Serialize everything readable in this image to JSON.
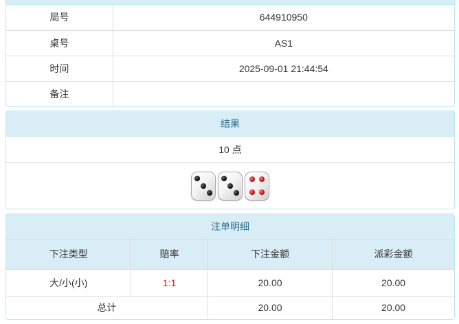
{
  "colors": {
    "panel_border": "#bce8f1",
    "heading_bg": "#d9edf7",
    "heading_text": "#31708f",
    "cell_border": "#dddddd",
    "text": "#333333",
    "odds_red": "#ff0000",
    "page_bg": "#ffffff"
  },
  "info_panel": {
    "rows": [
      {
        "label": "局号",
        "value": "644910950"
      },
      {
        "label": "桌号",
        "value": "AS1"
      },
      {
        "label": "时间",
        "value": "2025-09-01 21:44:54"
      },
      {
        "label": "备注",
        "value": ""
      }
    ]
  },
  "result_panel": {
    "title": "结果",
    "points": "10 点",
    "dice": [
      {
        "value": 3,
        "color": "black"
      },
      {
        "value": 3,
        "color": "black"
      },
      {
        "value": 4,
        "color": "red"
      }
    ]
  },
  "bets_panel": {
    "title": "注单明细",
    "columns": [
      "下注类型",
      "赔率",
      "下注金额",
      "派彩金额"
    ],
    "rows": [
      {
        "type": "大/小(小)",
        "odds": "1:1",
        "bet": "20.00",
        "payout": "20.00"
      }
    ],
    "total": {
      "label": "总计",
      "bet": "20.00",
      "payout": "20.00"
    }
  }
}
